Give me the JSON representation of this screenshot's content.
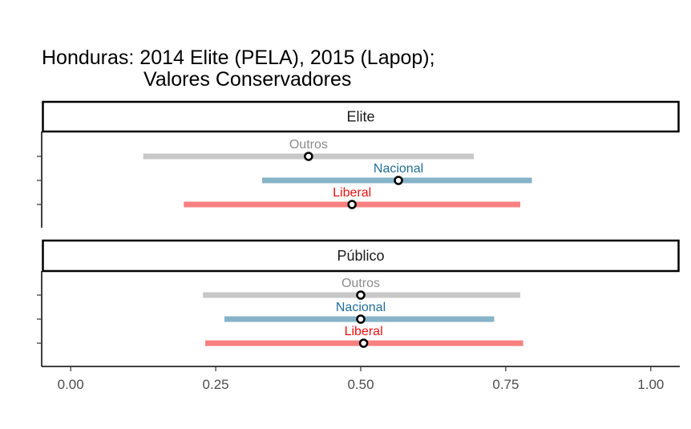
{
  "colors": {
    "Outros": {
      "bar": "#c8c8c8",
      "text": "#8c8c8c"
    },
    "Nacional": {
      "bar": "#86b3c8",
      "text": "#1f6f97"
    },
    "Liberal": {
      "bar": "#f88080",
      "text": "#ee1111"
    }
  },
  "chart_data": {
    "type": "dot-interval",
    "title_line1": "Honduras: 2014 Elite (PELA), 2015 (Lapop);",
    "title_line2": "Valores Conservadores",
    "xlim": [
      -0.05,
      1.05
    ],
    "x_ticks": [
      0,
      0.25,
      0.5,
      0.75,
      1
    ],
    "x_tick_labels": [
      "0.00",
      "0.25",
      "0.50",
      "0.75",
      "1.00"
    ],
    "xlabel": "",
    "ylabel": "",
    "grid": false,
    "panels": [
      {
        "label": "Elite",
        "series": [
          {
            "name": "Outros",
            "low": 0.125,
            "estimate": 0.41,
            "high": 0.695
          },
          {
            "name": "Nacional",
            "low": 0.33,
            "estimate": 0.565,
            "high": 0.795
          },
          {
            "name": "Liberal",
            "low": 0.195,
            "estimate": 0.485,
            "high": 0.775
          }
        ]
      },
      {
        "label": "Público",
        "series": [
          {
            "name": "Outros",
            "low": 0.228,
            "estimate": 0.5,
            "high": 0.775
          },
          {
            "name": "Nacional",
            "low": 0.265,
            "estimate": 0.5,
            "high": 0.73
          },
          {
            "name": "Liberal",
            "low": 0.232,
            "estimate": 0.505,
            "high": 0.78
          }
        ]
      }
    ]
  }
}
